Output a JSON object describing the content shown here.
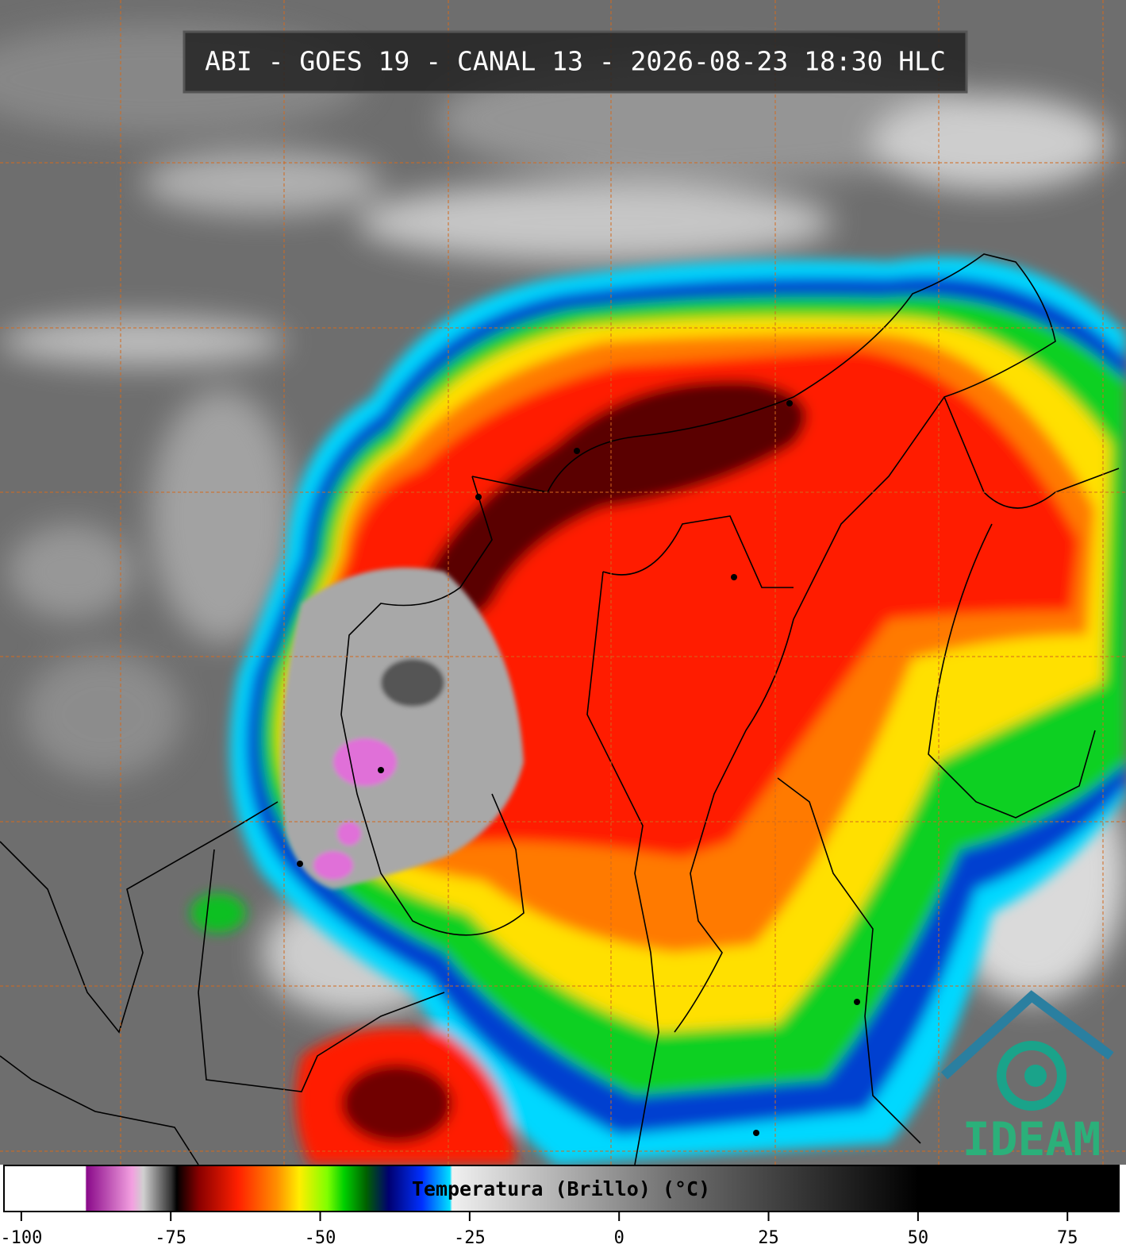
{
  "header": {
    "title": "ABI - GOES 19 - CANAL 13 - 2026-08-23 18:30 HLC"
  },
  "colorbar": {
    "label": "Temperatura (Brillo) (°C)",
    "range": [
      -102.9,
      83.6
    ],
    "ticks": [
      -100,
      -75,
      -50,
      -25,
      0,
      25,
      50,
      75
    ]
  },
  "logo": {
    "text": "IDEAM"
  }
}
